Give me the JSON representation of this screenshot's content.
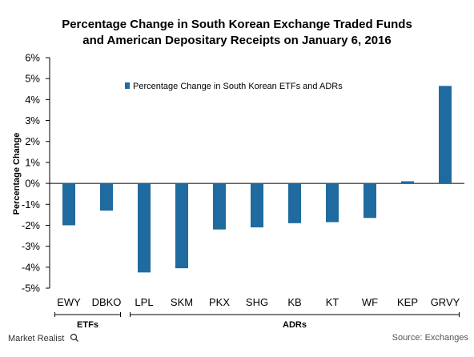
{
  "chart_data": {
    "type": "bar",
    "title_lines": [
      "Percentage Change in South Korean Exchange Traded Funds",
      "and American Depositary Receipts on January 6, 2016"
    ],
    "ylabel": "Percentage Change",
    "xlabel": "",
    "ylim": [
      -5,
      6
    ],
    "yticks": [
      6,
      5,
      4,
      3,
      2,
      1,
      0,
      -1,
      -2,
      -3,
      -4,
      -5
    ],
    "ytick_labels": [
      "6%",
      "5%",
      "4%",
      "3%",
      "2%",
      "1%",
      "0%",
      "-1%",
      "-2%",
      "-3%",
      "-4%",
      "-5%"
    ],
    "categories": [
      "EWY",
      "DBKO",
      "LPL",
      "SKM",
      "PKX",
      "SHG",
      "KB",
      "KT",
      "WF",
      "KEP",
      "GRVY"
    ],
    "series": [
      {
        "name": "Percentage Change in South Korean ETFs and ADRs",
        "values": [
          -2.0,
          -1.3,
          -4.25,
          -4.05,
          -2.2,
          -2.1,
          -1.9,
          -1.85,
          -1.65,
          0.1,
          4.65
        ],
        "color": "#1f6a9e"
      }
    ],
    "groups": [
      {
        "label": "ETFs",
        "from": 0,
        "to": 1
      },
      {
        "label": "ADRs",
        "from": 2,
        "to": 10
      }
    ],
    "grid": false,
    "legend_position": "top-left"
  },
  "footer": {
    "brand": "Market Realist",
    "source": "Source: Exchanges"
  }
}
